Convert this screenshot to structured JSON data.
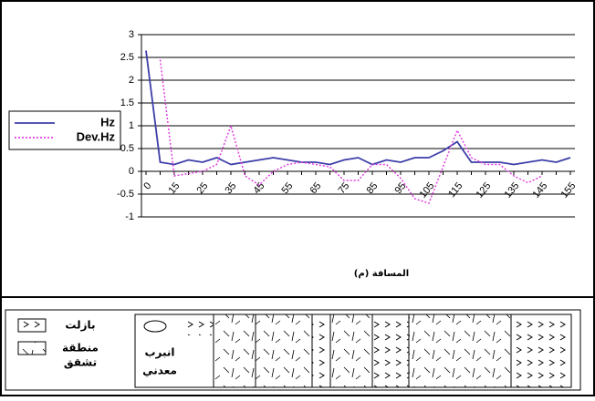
{
  "chart_data": {
    "type": "line",
    "x_label": "المسافة (م)",
    "categories": [
      "0",
      null,
      "15",
      null,
      "25",
      null,
      "35",
      null,
      "45",
      null,
      "55",
      null,
      "65",
      null,
      "75",
      null,
      "85",
      null,
      "95",
      null,
      "105",
      null,
      "115",
      null,
      "125",
      null,
      "135",
      null,
      "145",
      null,
      "155"
    ],
    "series": [
      {
        "name": "Hz",
        "color": "#3d3da8",
        "style": "solid",
        "values": [
          2.65,
          0.2,
          0.15,
          0.25,
          0.2,
          0.3,
          0.15,
          0.2,
          0.25,
          0.3,
          0.25,
          0.2,
          0.2,
          0.15,
          0.25,
          0.3,
          0.15,
          0.25,
          0.2,
          0.3,
          0.3,
          0.45,
          0.65,
          0.2,
          0.2,
          0.2,
          0.15,
          0.2,
          0.25,
          0.2,
          0.3
        ]
      },
      {
        "name": "Dev.Hz",
        "color": "#e040e0",
        "style": "dotted",
        "values": [
          null,
          2.45,
          -0.1,
          -0.05,
          0.0,
          0.15,
          1.0,
          -0.1,
          -0.3,
          0.0,
          0.15,
          0.2,
          0.15,
          0.1,
          -0.2,
          -0.2,
          0.15,
          0.15,
          -0.15,
          -0.6,
          -0.7,
          0.1,
          0.9,
          0.3,
          0.15,
          0.15,
          -0.1,
          -0.25,
          -0.1,
          null,
          null
        ]
      }
    ],
    "ylim": [
      -1,
      3
    ],
    "yticks": [
      -1,
      -0.5,
      0,
      0.5,
      1,
      1.5,
      2,
      2.5,
      3
    ],
    "grid": true,
    "legend": "left"
  },
  "section_legend": {
    "basalt": "بازلت",
    "fracture_zone": [
      "منطقة",
      "تشقق"
    ],
    "pipe": [
      "انبرب",
      "معدني"
    ]
  }
}
